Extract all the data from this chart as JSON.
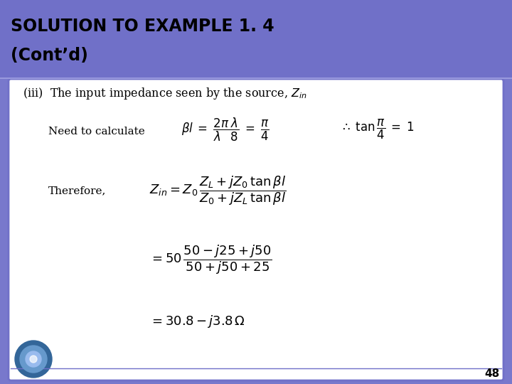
{
  "header_bg_color": "#7070C8",
  "slide_bg_color": "#7878CC",
  "border_color": "#7070C8",
  "body_bg_color": "#ffffff",
  "page_number": "48",
  "header_line1": "SOLUTION TO EXAMPLE 1. 4",
  "header_line2": "(Cont’d)"
}
